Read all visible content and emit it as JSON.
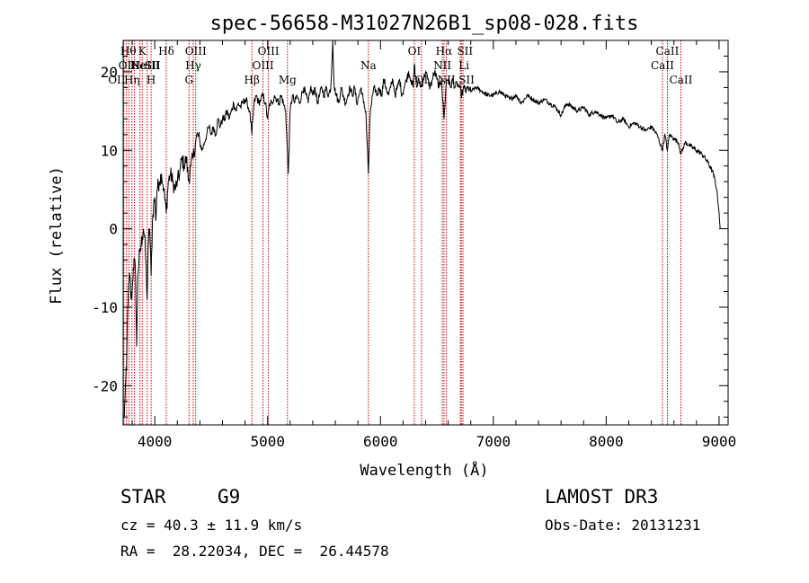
{
  "chart_data": {
    "type": "line",
    "title": "spec-56658-M31027N26B1_sp08-028.fits",
    "xlabel": "Wavelength (Å)",
    "ylabel": "Flux (relative)",
    "xlim": [
      3720,
      9080
    ],
    "ylim": [
      -25,
      24
    ],
    "xticks": [
      4000,
      5000,
      6000,
      7000,
      8000,
      9000
    ],
    "yticks": [
      -20,
      -10,
      0,
      10,
      20
    ],
    "line_color": "#000000",
    "marker_color": "#cc0000",
    "grid": false,
    "legend": "none",
    "spectrum": [
      [
        3730,
        -24
      ],
      [
        3740,
        -20
      ],
      [
        3750,
        -18
      ],
      [
        3760,
        -10
      ],
      [
        3770,
        -7
      ],
      [
        3780,
        -6
      ],
      [
        3790,
        -9
      ],
      [
        3800,
        -8
      ],
      [
        3810,
        -5
      ],
      [
        3820,
        -4
      ],
      [
        3830,
        -6
      ],
      [
        3840,
        -15
      ],
      [
        3850,
        -6
      ],
      [
        3860,
        -4
      ],
      [
        3870,
        -3
      ],
      [
        3880,
        -2
      ],
      [
        3890,
        -1
      ],
      [
        3900,
        0
      ],
      [
        3910,
        -1
      ],
      [
        3920,
        -4
      ],
      [
        3933,
        -9
      ],
      [
        3945,
        -1
      ],
      [
        3955,
        0
      ],
      [
        3968,
        -6
      ],
      [
        3980,
        1
      ],
      [
        3990,
        3
      ],
      [
        4000,
        4
      ],
      [
        4010,
        1
      ],
      [
        4020,
        5
      ],
      [
        4040,
        6
      ],
      [
        4060,
        7
      ],
      [
        4080,
        5
      ],
      [
        4102,
        2
      ],
      [
        4120,
        6
      ],
      [
        4140,
        7
      ],
      [
        4160,
        6
      ],
      [
        4180,
        5
      ],
      [
        4200,
        6
      ],
      [
        4220,
        7
      ],
      [
        4240,
        9
      ],
      [
        4260,
        8
      ],
      [
        4280,
        9
      ],
      [
        4300,
        6
      ],
      [
        4320,
        8
      ],
      [
        4340,
        9
      ],
      [
        4360,
        11
      ],
      [
        4380,
        12
      ],
      [
        4400,
        11
      ],
      [
        4420,
        10
      ],
      [
        4440,
        11
      ],
      [
        4460,
        12
      ],
      [
        4480,
        13
      ],
      [
        4500,
        12
      ],
      [
        4520,
        13
      ],
      [
        4540,
        12
      ],
      [
        4560,
        14
      ],
      [
        4580,
        13
      ],
      [
        4600,
        14
      ],
      [
        4620,
        14
      ],
      [
        4640,
        15
      ],
      [
        4660,
        14
      ],
      [
        4680,
        15
      ],
      [
        4700,
        16
      ],
      [
        4720,
        15
      ],
      [
        4740,
        16
      ],
      [
        4760,
        15.5
      ],
      [
        4780,
        16
      ],
      [
        4800,
        16.5
      ],
      [
        4820,
        16
      ],
      [
        4840,
        15
      ],
      [
        4861,
        12
      ],
      [
        4880,
        16
      ],
      [
        4900,
        17
      ],
      [
        4920,
        16
      ],
      [
        4940,
        16.5
      ],
      [
        4960,
        17
      ],
      [
        4980,
        16
      ],
      [
        5000,
        14
      ],
      [
        5020,
        16
      ],
      [
        5040,
        16
      ],
      [
        5060,
        17
      ],
      [
        5080,
        16.5
      ],
      [
        5100,
        16
      ],
      [
        5120,
        17
      ],
      [
        5140,
        16
      ],
      [
        5160,
        15
      ],
      [
        5172,
        11
      ],
      [
        5183,
        7
      ],
      [
        5200,
        15
      ],
      [
        5220,
        17
      ],
      [
        5240,
        16
      ],
      [
        5260,
        17
      ],
      [
        5280,
        16
      ],
      [
        5300,
        17
      ],
      [
        5320,
        18
      ],
      [
        5340,
        17
      ],
      [
        5360,
        16
      ],
      [
        5380,
        18
      ],
      [
        5400,
        17
      ],
      [
        5420,
        18
      ],
      [
        5440,
        16
      ],
      [
        5460,
        17
      ],
      [
        5480,
        18
      ],
      [
        5500,
        17
      ],
      [
        5520,
        18
      ],
      [
        5540,
        17
      ],
      [
        5560,
        18
      ],
      [
        5577,
        24
      ],
      [
        5590,
        18
      ],
      [
        5610,
        17
      ],
      [
        5630,
        16
      ],
      [
        5650,
        18
      ],
      [
        5670,
        17
      ],
      [
        5690,
        16
      ],
      [
        5710,
        17
      ],
      [
        5730,
        18
      ],
      [
        5750,
        17
      ],
      [
        5770,
        18
      ],
      [
        5790,
        16
      ],
      [
        5810,
        17
      ],
      [
        5830,
        18
      ],
      [
        5850,
        16
      ],
      [
        5870,
        15
      ],
      [
        5893,
        7
      ],
      [
        5910,
        15
      ],
      [
        5930,
        17
      ],
      [
        5950,
        18
      ],
      [
        5970,
        17
      ],
      [
        5990,
        18
      ],
      [
        6010,
        17
      ],
      [
        6030,
        19
      ],
      [
        6050,
        18
      ],
      [
        6070,
        17
      ],
      [
        6090,
        18
      ],
      [
        6110,
        19
      ],
      [
        6130,
        17
      ],
      [
        6150,
        18
      ],
      [
        6170,
        19
      ],
      [
        6190,
        17
      ],
      [
        6210,
        18
      ],
      [
        6230,
        19
      ],
      [
        6250,
        20
      ],
      [
        6270,
        19
      ],
      [
        6290,
        18
      ],
      [
        6300,
        21
      ],
      [
        6320,
        18
      ],
      [
        6340,
        19
      ],
      [
        6360,
        18
      ],
      [
        6380,
        19
      ],
      [
        6400,
        20
      ],
      [
        6420,
        19
      ],
      [
        6440,
        18
      ],
      [
        6460,
        19
      ],
      [
        6480,
        20
      ],
      [
        6500,
        19
      ],
      [
        6520,
        18
      ],
      [
        6540,
        19
      ],
      [
        6563,
        14
      ],
      [
        6585,
        19
      ],
      [
        6600,
        19
      ],
      [
        6620,
        18
      ],
      [
        6640,
        19
      ],
      [
        6660,
        18
      ],
      [
        6680,
        18.5
      ],
      [
        6700,
        18
      ],
      [
        6720,
        17
      ],
      [
        6740,
        18
      ],
      [
        6760,
        17.5
      ],
      [
        6780,
        18
      ],
      [
        6800,
        17.5
      ],
      [
        6850,
        18
      ],
      [
        6900,
        17.5
      ],
      [
        6950,
        17
      ],
      [
        7000,
        17
      ],
      [
        7050,
        17.5
      ],
      [
        7100,
        17
      ],
      [
        7150,
        16.5
      ],
      [
        7200,
        17
      ],
      [
        7250,
        16
      ],
      [
        7300,
        17
      ],
      [
        7350,
        16.5
      ],
      [
        7400,
        16
      ],
      [
        7450,
        16.5
      ],
      [
        7500,
        16
      ],
      [
        7550,
        15.5
      ],
      [
        7600,
        14.5
      ],
      [
        7650,
        16
      ],
      [
        7700,
        15.5
      ],
      [
        7750,
        15
      ],
      [
        7800,
        15.5
      ],
      [
        7850,
        14.5
      ],
      [
        7900,
        15
      ],
      [
        7950,
        14.5
      ],
      [
        8000,
        14
      ],
      [
        8050,
        14.5
      ],
      [
        8100,
        13.5
      ],
      [
        8150,
        14
      ],
      [
        8200,
        13
      ],
      [
        8250,
        13.5
      ],
      [
        8300,
        13
      ],
      [
        8350,
        12.5
      ],
      [
        8400,
        13
      ],
      [
        8450,
        12
      ],
      [
        8498,
        10
      ],
      [
        8520,
        12
      ],
      [
        8542,
        10
      ],
      [
        8560,
        12
      ],
      [
        8600,
        11.5
      ],
      [
        8640,
        11
      ],
      [
        8662,
        9.5
      ],
      [
        8700,
        11
      ],
      [
        8750,
        10.5
      ],
      [
        8800,
        10
      ],
      [
        8850,
        9.5
      ],
      [
        8900,
        8.5
      ],
      [
        8950,
        7
      ],
      [
        8980,
        5
      ],
      [
        9000,
        2
      ],
      [
        9010,
        0
      ]
    ],
    "lines": [
      {
        "wl": 3727,
        "label": "OII",
        "row": 2,
        "dx": -8
      },
      {
        "wl": 3750,
        "label": "Hθ",
        "row": 0,
        "dx": 2
      },
      {
        "wl": 3771,
        "label": "OII",
        "row": 1,
        "dx": -2
      },
      {
        "wl": 3798,
        "label": "Hη",
        "row": 2,
        "dx": 0
      },
      {
        "wl": 3820,
        "label": "He",
        "row": 1,
        "dx": 4
      },
      {
        "wl": 3869,
        "label": "NeIII",
        "row": 1,
        "dx": 6
      },
      {
        "wl": 3889,
        "label": "K",
        "row": 0,
        "dx": 0
      },
      {
        "wl": 3933,
        "label": "SII",
        "row": 1,
        "dx": 6
      },
      {
        "wl": 3968,
        "label": "H",
        "row": 2,
        "dx": 0
      },
      {
        "wl": 4102,
        "label": "Hδ",
        "row": 0,
        "dx": 0
      },
      {
        "wl": 4304,
        "label": "G",
        "row": 2,
        "dx": 0
      },
      {
        "wl": 4341,
        "label": "Hγ",
        "row": 1,
        "dx": 0
      },
      {
        "wl": 4363,
        "label": "OIII",
        "row": 0,
        "dx": 0
      },
      {
        "wl": 4861,
        "label": "Hβ",
        "row": 2,
        "dx": 0
      },
      {
        "wl": 4959,
        "label": "OIII",
        "row": 1,
        "dx": 0
      },
      {
        "wl": 5007,
        "label": "OIII",
        "row": 0,
        "dx": 0
      },
      {
        "wl": 5176,
        "label": "Mg",
        "row": 2,
        "dx": 0
      },
      {
        "wl": 5893,
        "label": "Na",
        "row": 1,
        "dx": 0
      },
      {
        "wl": 6300,
        "label": "OI",
        "row": 0,
        "dx": 0
      },
      {
        "wl": 6364,
        "label": "OI",
        "row": 2,
        "dx": 0
      },
      {
        "wl": 6548,
        "label": "NII",
        "row": 1,
        "dx": 0
      },
      {
        "wl": 6563,
        "label": "Hα",
        "row": 0,
        "dx": 0
      },
      {
        "wl": 6584,
        "label": "NII",
        "row": 2,
        "dx": 0
      },
      {
        "wl": 6708,
        "label": "Li",
        "row": 1,
        "dx": 4
      },
      {
        "wl": 6717,
        "label": "SII",
        "row": 0,
        "dx": 4
      },
      {
        "wl": 6731,
        "label": "SII",
        "row": 2,
        "dx": 4
      },
      {
        "wl": 8498,
        "label": "CaII",
        "row": 1,
        "dx": 0
      },
      {
        "wl": 8542,
        "label": "CaII",
        "row": 0,
        "dx": 0
      },
      {
        "wl": 8662,
        "label": "CaII",
        "row": 2,
        "dx": 0
      }
    ]
  },
  "info": {
    "class": "STAR",
    "subclass": "G9",
    "survey": "LAMOST DR3",
    "cz": "cz = 40.3 ± 11.9 km/s",
    "obs_date": "Obs-Date: 20131231",
    "radec": "RA =  28.22034, DEC =  26.44578"
  }
}
